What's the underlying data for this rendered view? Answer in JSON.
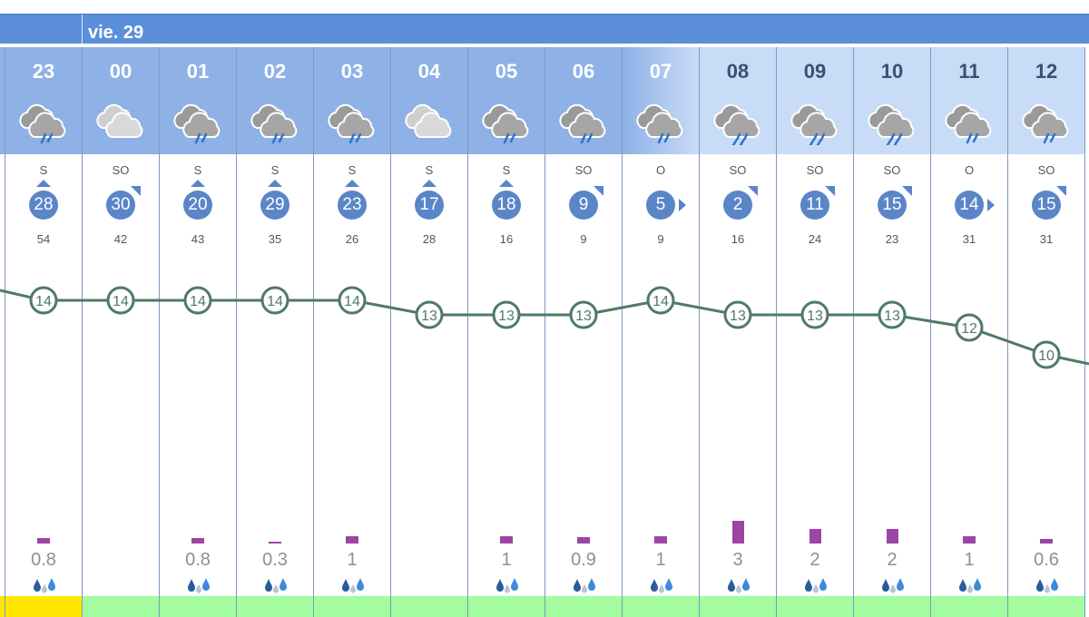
{
  "day_header": {
    "label": "vie. 29"
  },
  "colors": {
    "day_bar": "#5b8fd9",
    "header_dark": "#8eb1e6",
    "header_light": "#c9dcf7",
    "wind_circle": "#5a86c8",
    "temp_line": "#4f7a66",
    "rain_bar": "#9c45a3",
    "bottom_yellow": "#ffe600",
    "bottom_green": "#a3fca0"
  },
  "columns": [
    {
      "hour": "23",
      "icon": "rain-cloud-icon",
      "dir": "S",
      "wind": "28",
      "gust": "54",
      "temp": "14",
      "rain": "0.8",
      "rain_h": 6,
      "bottom": "yellow",
      "night": true
    },
    {
      "hour": "00",
      "icon": "cloudy-icon",
      "dir": "SO",
      "wind": "30",
      "gust": "42",
      "temp": "14",
      "rain": "",
      "rain_h": 0,
      "bottom": "green",
      "night": true
    },
    {
      "hour": "01",
      "icon": "rain-cloud-icon",
      "dir": "S",
      "wind": "20",
      "gust": "43",
      "temp": "14",
      "rain": "0.8",
      "rain_h": 6,
      "bottom": "green",
      "night": true
    },
    {
      "hour": "02",
      "icon": "rain-cloud-icon",
      "dir": "S",
      "wind": "29",
      "gust": "35",
      "temp": "14",
      "rain": "0.3",
      "rain_h": 2,
      "bottom": "green",
      "night": true
    },
    {
      "hour": "03",
      "icon": "rain-cloud-icon",
      "dir": "S",
      "wind": "23",
      "gust": "26",
      "temp": "14",
      "rain": "1",
      "rain_h": 8,
      "bottom": "green",
      "night": true
    },
    {
      "hour": "04",
      "icon": "cloudy-icon",
      "dir": "S",
      "wind": "17",
      "gust": "28",
      "temp": "13",
      "rain": "",
      "rain_h": 0,
      "bottom": "green",
      "night": true
    },
    {
      "hour": "05",
      "icon": "rain-cloud-icon",
      "dir": "S",
      "wind": "18",
      "gust": "16",
      "temp": "13",
      "rain": "1",
      "rain_h": 8,
      "bottom": "green",
      "night": true
    },
    {
      "hour": "06",
      "icon": "rain-cloud-icon",
      "dir": "SO",
      "wind": "9",
      "gust": "9",
      "temp": "13",
      "rain": "0.9",
      "rain_h": 7,
      "bottom": "green",
      "night": true
    },
    {
      "hour": "07",
      "icon": "rain-cloud-icon",
      "dir": "O",
      "wind": "5",
      "gust": "9",
      "temp": "14",
      "rain": "1",
      "rain_h": 8,
      "bottom": "green",
      "night": "dawn"
    },
    {
      "hour": "08",
      "icon": "heavy-rain-cloud-icon",
      "dir": "SO",
      "wind": "2",
      "gust": "16",
      "temp": "13",
      "rain": "3",
      "rain_h": 25,
      "bottom": "green",
      "night": false
    },
    {
      "hour": "09",
      "icon": "heavy-rain-cloud-icon",
      "dir": "SO",
      "wind": "11",
      "gust": "24",
      "temp": "13",
      "rain": "2",
      "rain_h": 16,
      "bottom": "green",
      "night": false
    },
    {
      "hour": "10",
      "icon": "heavy-rain-cloud-icon",
      "dir": "SO",
      "wind": "15",
      "gust": "23",
      "temp": "13",
      "rain": "2",
      "rain_h": 16,
      "bottom": "green",
      "night": false
    },
    {
      "hour": "11",
      "icon": "rain-cloud-icon",
      "dir": "O",
      "wind": "14",
      "gust": "31",
      "temp": "12",
      "rain": "1",
      "rain_h": 8,
      "bottom": "green",
      "night": false
    },
    {
      "hour": "12",
      "icon": "rain-cloud-icon",
      "dir": "SO",
      "wind": "15",
      "gust": "31",
      "temp": "10",
      "rain": "0.6",
      "rain_h": 5,
      "bottom": "green",
      "night": false
    }
  ]
}
